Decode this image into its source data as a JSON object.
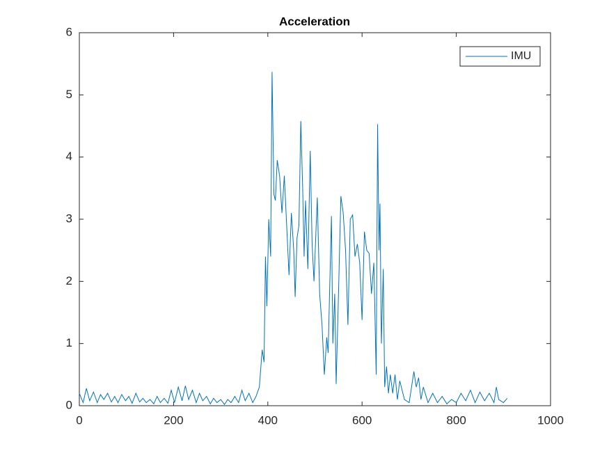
{
  "chart_data": {
    "type": "line",
    "title": "Acceleration",
    "x": [
      0,
      8,
      15,
      22,
      30,
      38,
      45,
      52,
      60,
      68,
      75,
      82,
      90,
      98,
      105,
      112,
      120,
      128,
      135,
      142,
      150,
      158,
      165,
      172,
      180,
      188,
      195,
      202,
      210,
      218,
      225,
      232,
      240,
      248,
      255,
      262,
      270,
      278,
      285,
      292,
      300,
      308,
      315,
      322,
      330,
      338,
      345,
      352,
      360,
      368,
      375,
      382,
      388,
      392,
      395,
      398,
      402,
      406,
      409,
      413,
      416,
      420,
      425,
      430,
      435,
      440,
      445,
      450,
      455,
      458,
      462,
      466,
      470,
      474,
      477,
      480,
      485,
      490,
      494,
      498,
      505,
      510,
      515,
      520,
      525,
      528,
      535,
      538,
      542,
      545,
      550,
      555,
      560,
      565,
      570,
      575,
      580,
      585,
      590,
      595,
      600,
      605,
      610,
      615,
      620,
      625,
      630,
      633,
      636,
      638,
      641,
      645,
      648,
      652,
      656,
      660,
      665,
      670,
      675,
      680,
      690,
      700,
      705,
      710,
      715,
      720,
      725,
      730,
      740,
      750,
      760,
      770,
      780,
      790,
      800,
      810,
      820,
      830,
      840,
      850,
      860,
      870,
      880,
      885,
      890,
      900,
      908
    ],
    "series": [
      {
        "name": "IMU",
        "color": "#0072bd",
        "values": [
          0.2,
          0.05,
          0.28,
          0.08,
          0.22,
          0.05,
          0.18,
          0.1,
          0.2,
          0.06,
          0.15,
          0.05,
          0.18,
          0.08,
          0.15,
          0.04,
          0.2,
          0.06,
          0.12,
          0.05,
          0.1,
          0.03,
          0.15,
          0.05,
          0.12,
          0.04,
          0.25,
          0.05,
          0.3,
          0.08,
          0.32,
          0.1,
          0.25,
          0.05,
          0.2,
          0.08,
          0.15,
          0.03,
          0.12,
          0.05,
          0.1,
          0.02,
          0.1,
          0.05,
          0.15,
          0.05,
          0.25,
          0.08,
          0.2,
          0.05,
          0.15,
          0.3,
          0.9,
          0.7,
          2.4,
          1.6,
          3.0,
          2.4,
          5.37,
          3.4,
          3.3,
          3.95,
          3.7,
          3.1,
          3.7,
          2.9,
          2.1,
          3.1,
          2.5,
          1.75,
          2.7,
          2.9,
          4.58,
          3.5,
          2.4,
          3.3,
          2.2,
          4.1,
          2.6,
          2.0,
          3.35,
          1.8,
          1.3,
          0.5,
          1.1,
          0.85,
          3.05,
          1.0,
          1.8,
          0.35,
          1.8,
          3.37,
          3.1,
          2.5,
          1.3,
          3.0,
          3.07,
          2.4,
          2.6,
          2.3,
          1.38,
          2.8,
          2.5,
          2.45,
          1.8,
          2.3,
          0.5,
          4.53,
          2.5,
          3.25,
          1.0,
          2.2,
          0.3,
          0.63,
          0.2,
          0.5,
          0.2,
          0.5,
          0.1,
          0.4,
          0.1,
          0.05,
          0.3,
          0.55,
          0.3,
          0.45,
          0.1,
          0.3,
          0.05,
          0.2,
          0.05,
          0.15,
          0.03,
          0.1,
          0.05,
          0.2,
          0.08,
          0.25,
          0.05,
          0.22,
          0.08,
          0.2,
          0.05,
          0.3,
          0.1,
          0.05,
          0.12
        ]
      }
    ],
    "xlim": [
      0,
      1000
    ],
    "xticks": [
      0,
      200,
      400,
      600,
      800,
      1000
    ],
    "ylim": [
      0,
      6
    ],
    "yticks": [
      0,
      1,
      2,
      3,
      4,
      5,
      6
    ],
    "legend": "top-right"
  }
}
